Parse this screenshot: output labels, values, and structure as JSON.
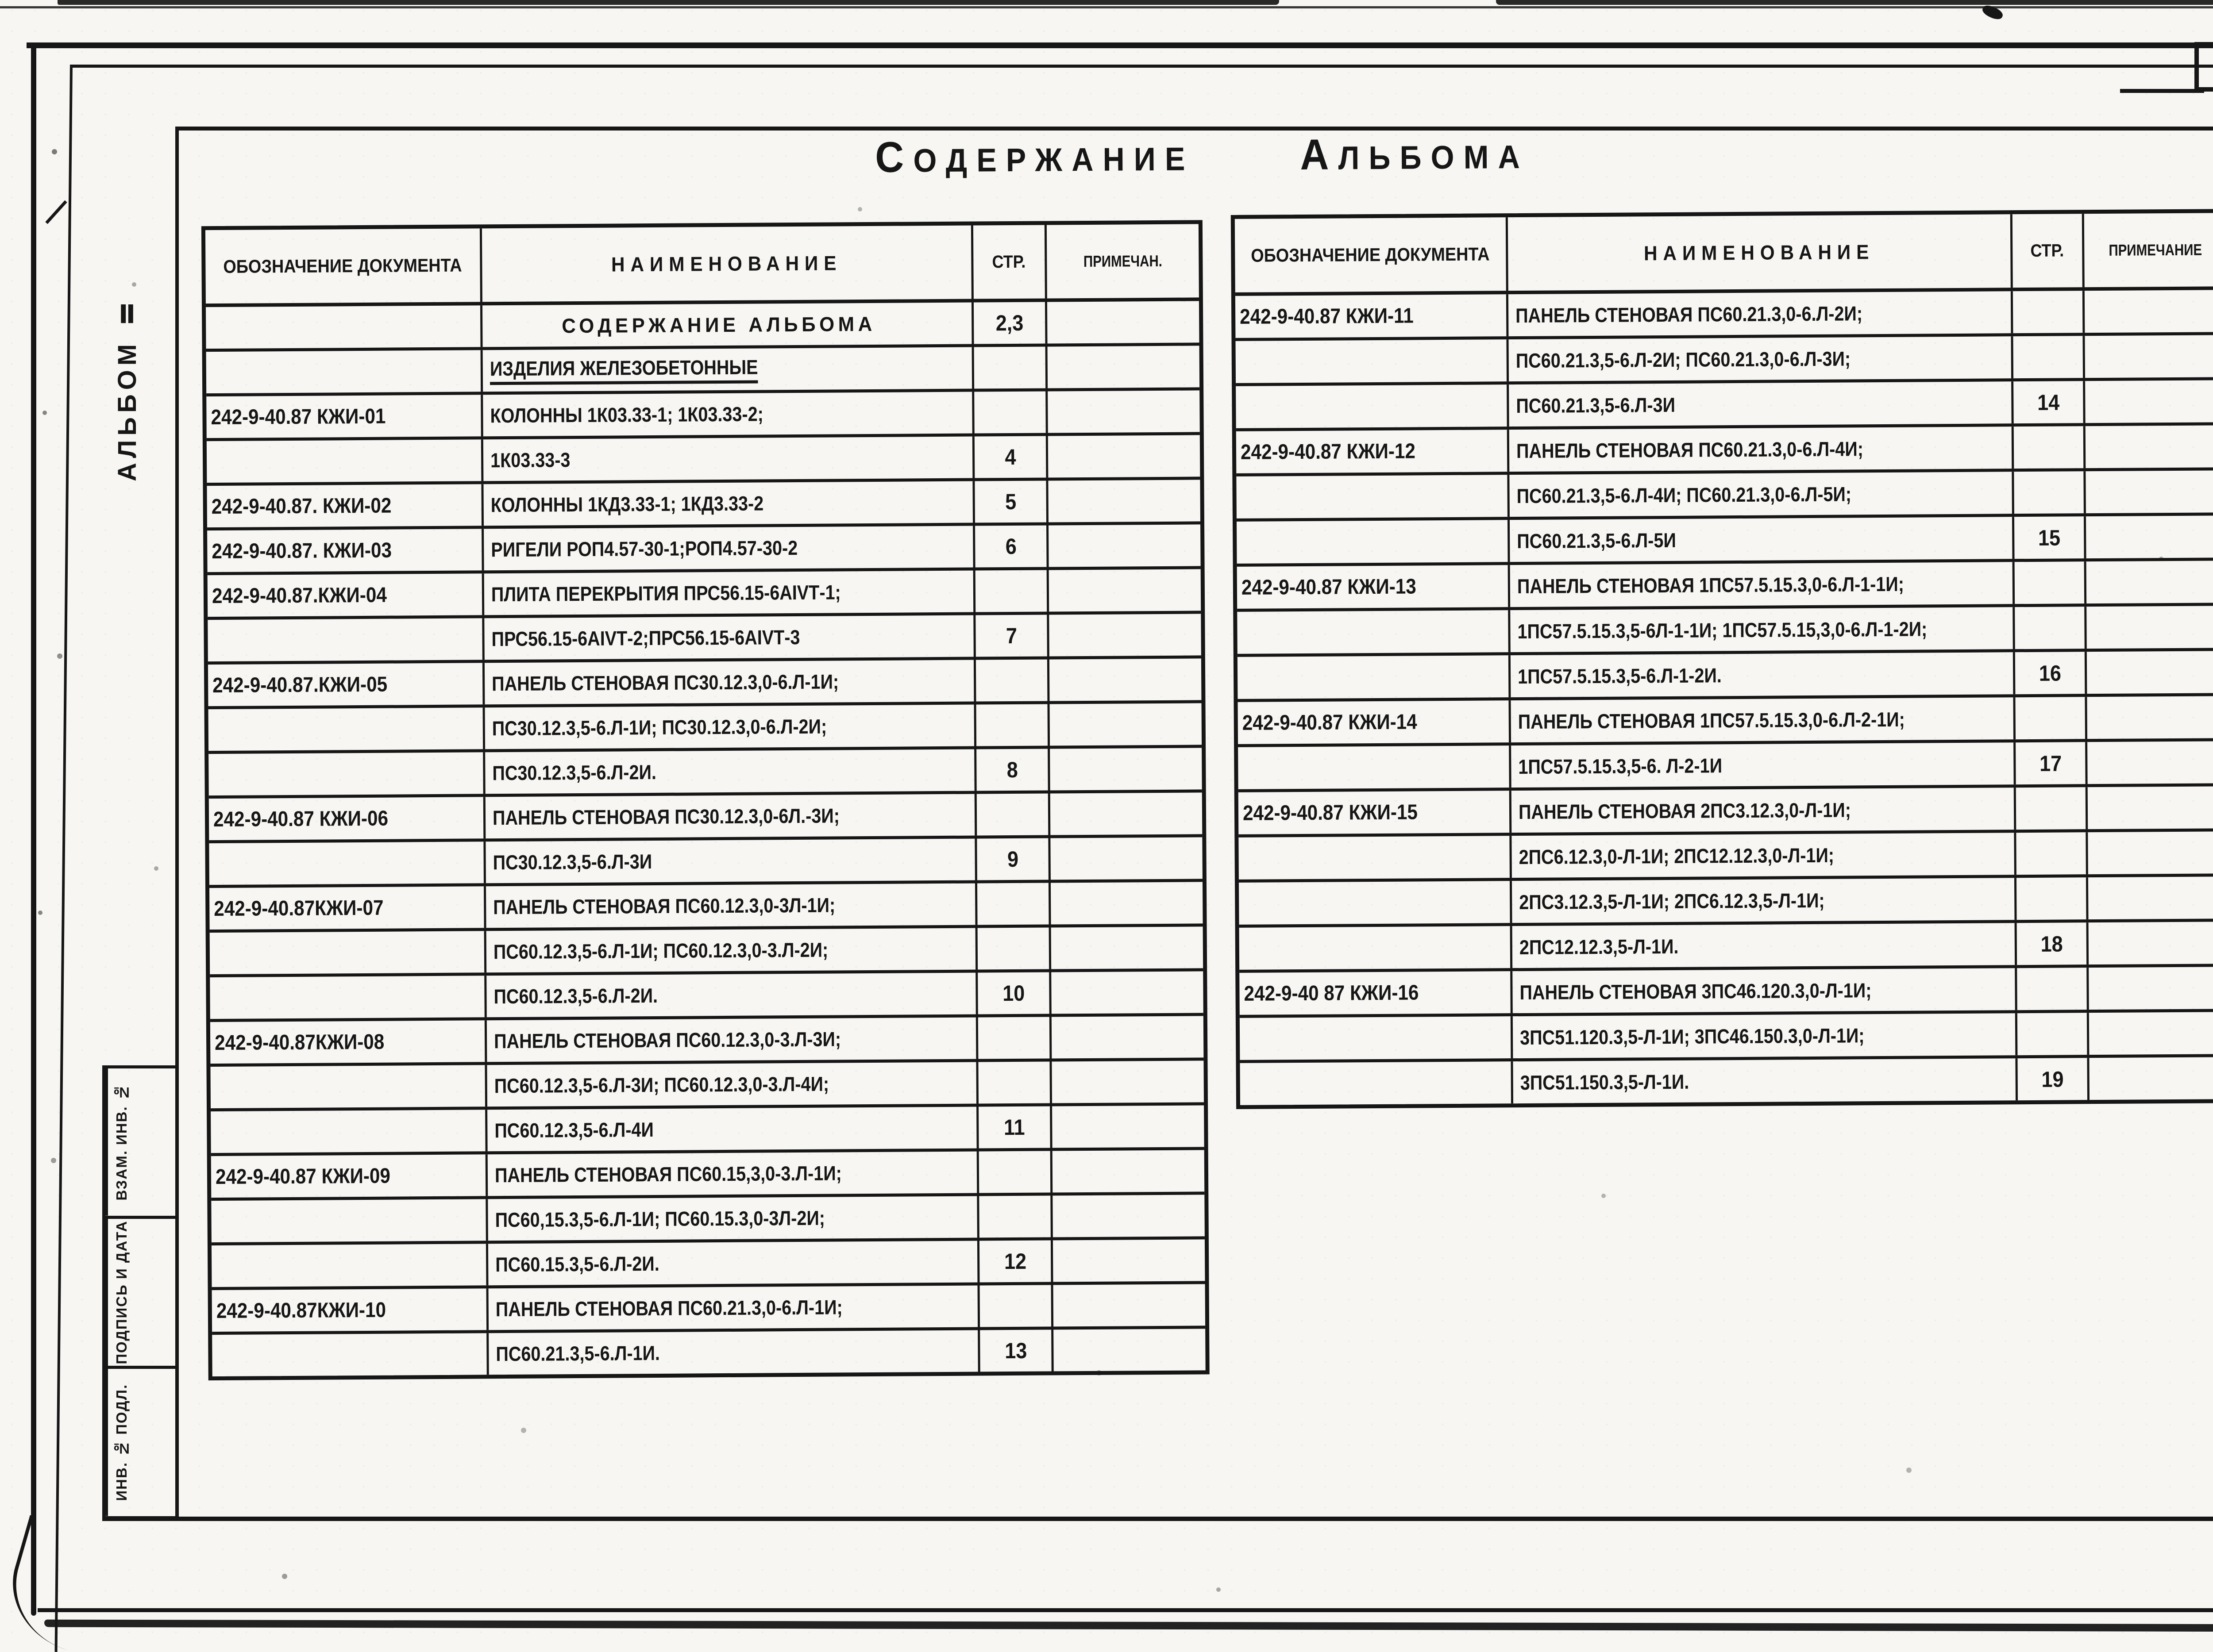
{
  "page": {
    "number": "2",
    "title": {
      "word1": "СОДЕРЖАНИЕ",
      "word2": "АЛЬБОМА"
    },
    "side_label": "АЛЬБОМ Ⅱ",
    "stamp": [
      "ВЗАМ. ИНВ. №",
      "ПОДПИСЬ И ДАТА",
      "ИНВ. № ПОДЛ."
    ],
    "colors": {
      "paper": "#f7f6f3",
      "ink": "#161616"
    }
  },
  "tables": [
    {
      "headers": {
        "doc": "ОБОЗНАЧЕНИЕ ДОКУМЕНТА",
        "name": "НАИМЕНОВАНИЕ",
        "page": "СТР.",
        "note": "ПРИМЕЧАН."
      },
      "rows": [
        {
          "d": "",
          "n": "СОДЕРЖАНИЕ АЛЬБОМА",
          "p": "2,3",
          "f": "c"
        },
        {
          "d": "",
          "n": "ИЗДЕЛИЯ ЖЕЛЕЗОБЕТОННЫЕ",
          "p": "",
          "f": "u"
        },
        {
          "d": "242-9-40.87 КЖИ-01",
          "n": "КОЛОННЫ 1К03.33-1;  1К03.33-2;",
          "p": ""
        },
        {
          "d": "",
          "n": "1К03.33-3",
          "p": "4"
        },
        {
          "d": "242-9-40.87. КЖИ-02",
          "n": "КОЛОННЫ 1КД3.33-1;  1КД3.33-2",
          "p": "5"
        },
        {
          "d": "242-9-40.87. КЖИ-03",
          "n": "РИГЕЛИ РОП4.57-30-1;РОП4.57-30-2",
          "p": "6"
        },
        {
          "d": "242-9-40.87.КЖИ-04",
          "n": "ПЛИТА ПЕРЕКРЫТИЯ ПРС56.15-6АIVТ-1;",
          "p": ""
        },
        {
          "d": "",
          "n": "ПРС56.15-6АIVТ-2;ПРС56.15-6АIVТ-3",
          "p": "7"
        },
        {
          "d": "242-9-40.87.КЖИ-05",
          "n": "ПАНЕЛЬ СТЕНОВАЯ ПС30.12.3,0-6.Л-1И;",
          "p": ""
        },
        {
          "d": "",
          "n": "ПС30.12.3,5-6.Л-1И; ПС30.12.3,0-6.Л-2И;",
          "p": ""
        },
        {
          "d": "",
          "n": "ПС30.12.3,5-6.Л-2И.",
          "p": "8"
        },
        {
          "d": "242-9-40.87 КЖИ-06",
          "n": "ПАНЕЛЬ СТЕНОВАЯ ПС30.12.3,0-6Л.-3И;",
          "p": ""
        },
        {
          "d": "",
          "n": "ПС30.12.3,5-6.Л-3И",
          "p": "9"
        },
        {
          "d": "242-9-40.87КЖИ-07",
          "n": "ПАНЕЛЬ СТЕНОВАЯ ПС60.12.3,0-3Л-1И;",
          "p": ""
        },
        {
          "d": "",
          "n": "ПС60.12.3,5-6.Л-1И; ПС60.12.3,0-3.Л-2И;",
          "p": ""
        },
        {
          "d": "",
          "n": "ПС60.12.3,5-6.Л-2И.",
          "p": "10"
        },
        {
          "d": "242-9-40.87КЖИ-08",
          "n": "ПАНЕЛЬ СТЕНОВАЯ ПС60.12.3,0-3.Л-3И;",
          "p": ""
        },
        {
          "d": "",
          "n": "ПС60.12.3,5-6.Л-3И; ПС60.12.3,0-3.Л-4И;",
          "p": ""
        },
        {
          "d": "",
          "n": "ПС60.12.3,5-6.Л-4И",
          "p": "11"
        },
        {
          "d": "242-9-40.87 КЖИ-09",
          "n": "ПАНЕЛЬ СТЕНОВАЯ ПС60.15,3,0-3.Л-1И;",
          "p": ""
        },
        {
          "d": "",
          "n": "ПС60,15.3,5-6.Л-1И; ПС60.15.3,0-3Л-2И;",
          "p": ""
        },
        {
          "d": "",
          "n": "ПС60.15.3,5-6.Л-2И.",
          "p": "12"
        },
        {
          "d": "242-9-40.87КЖИ-10",
          "n": "ПАНЕЛЬ СТЕНОВАЯ ПС60.21.3,0-6.Л-1И;",
          "p": ""
        },
        {
          "d": "",
          "n": "ПС60.21.3,5-6.Л-1И.",
          "p": "13"
        }
      ]
    },
    {
      "headers": {
        "doc": "ОБОЗНАЧЕНИЕ ДОКУМЕНТА",
        "name": "НАИМЕНОВАНИЕ",
        "page": "СТР.",
        "note": "ПРИМЕЧАНИЕ"
      },
      "rows": [
        {
          "d": "242-9-40.87 КЖИ-11",
          "n": "ПАНЕЛЬ СТЕНОВАЯ ПС60.21.3,0-6.Л-2И;",
          "p": ""
        },
        {
          "d": "",
          "n": "ПС60.21.3,5-6.Л-2И; ПС60.21.3,0-6.Л-3И;",
          "p": ""
        },
        {
          "d": "",
          "n": "ПС60.21.3,5-6.Л-3И",
          "p": "14"
        },
        {
          "d": "242-9-40.87 КЖИ-12",
          "n": "ПАНЕЛЬ СТЕНОВАЯ ПС60.21.3,0-6.Л-4И;",
          "p": ""
        },
        {
          "d": "",
          "n": "ПС60.21.3,5-6.Л-4И; ПС60.21.3,0-6.Л-5И;",
          "p": ""
        },
        {
          "d": "",
          "n": "ПС60.21.3,5-6.Л-5И",
          "p": "15"
        },
        {
          "d": "242-9-40.87 КЖИ-13",
          "n": "ПАНЕЛЬ СТЕНОВАЯ 1ПС57.5.15.3,0-6.Л-1-1И;",
          "p": ""
        },
        {
          "d": "",
          "n": "1ПС57.5.15.3,5-6Л-1-1И; 1ПС57.5.15,3,0-6.Л-1-2И;",
          "p": ""
        },
        {
          "d": "",
          "n": "1ПС57.5.15.3,5-6.Л-1-2И.",
          "p": "16"
        },
        {
          "d": "242-9-40.87 КЖИ-14",
          "n": "ПАНЕЛЬ СТЕНОВАЯ 1ПС57.5.15.3,0-6.Л-2-1И;",
          "p": ""
        },
        {
          "d": "",
          "n": "1ПС57.5.15.3,5-6. Л-2-1И",
          "p": "17"
        },
        {
          "d": "242-9-40.87 КЖИ-15",
          "n": "ПАНЕЛЬ СТЕНОВАЯ 2ПС3.12.3,0-Л-1И;",
          "p": ""
        },
        {
          "d": "",
          "n": "2ПС6.12.3,0-Л-1И; 2ПС12.12.3,0-Л-1И;",
          "p": ""
        },
        {
          "d": "",
          "n": "2ПС3.12.3,5-Л-1И; 2ПС6.12.3,5-Л-1И;",
          "p": ""
        },
        {
          "d": "",
          "n": "2ПС12.12.3,5-Л-1И.",
          "p": "18"
        },
        {
          "d": "242-9-40 87 КЖИ-16",
          "n": "ПАНЕЛЬ СТЕНОВАЯ 3ПС46.120.3,0-Л-1И;",
          "p": ""
        },
        {
          "d": "",
          "n": "3ПС51.120.3,5-Л-1И; 3ПС46.150.3,0-Л-1И;",
          "p": ""
        },
        {
          "d": "",
          "n": "3ПС51.150.3,5-Л-1И.",
          "p": "19"
        }
      ]
    }
  ]
}
